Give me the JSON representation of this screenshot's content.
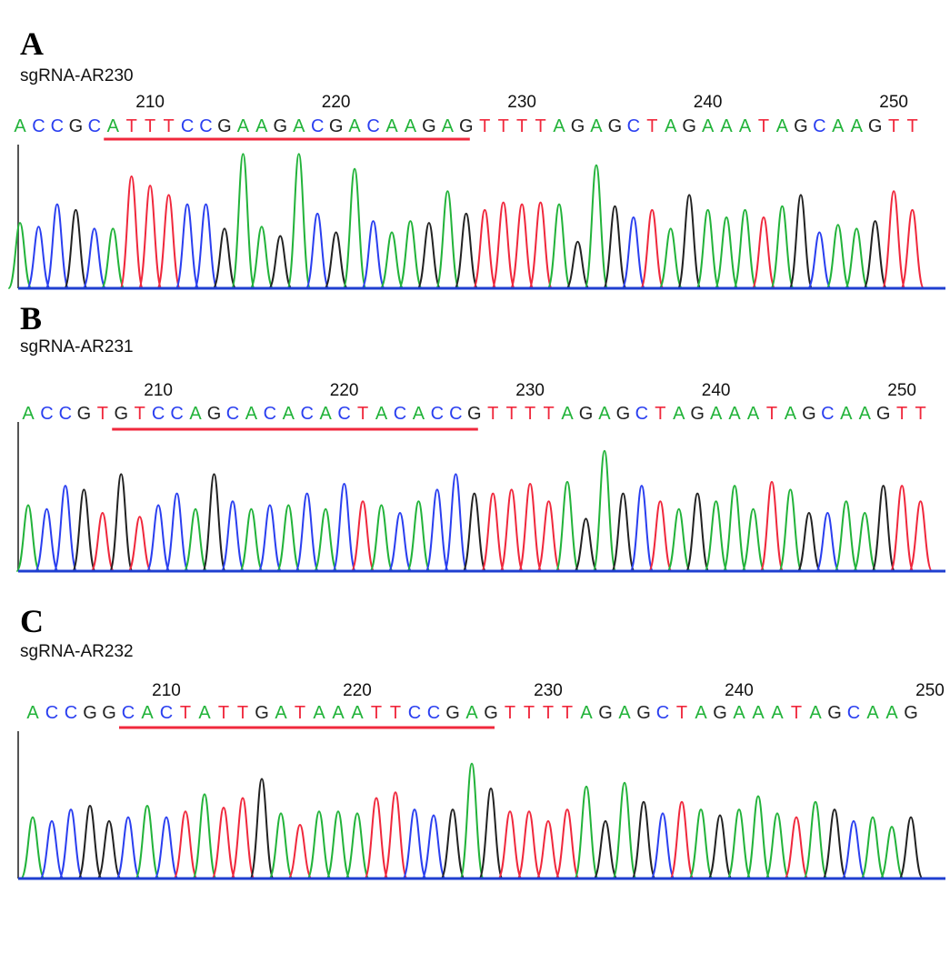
{
  "colors": {
    "A": "#22b33a",
    "C": "#2a3ff0",
    "G": "#222222",
    "T": "#f0283c",
    "underline": "#f0283c",
    "baseline": "#1f3fd0",
    "axis": "#555555"
  },
  "panels": [
    {
      "letter": "A",
      "label": "sgRNA-AR230",
      "positions": [
        "210",
        "220",
        "230",
        "240",
        "250"
      ],
      "sequence": "ACCGCATTTCCGAAGACGACAAGAGTTTTAGAGCTAGAAATAGCAAGTT",
      "underline_bases": [
        5,
        24
      ]
    },
    {
      "letter": "B",
      "label": "sgRNA-AR231",
      "positions": [
        "210",
        "220",
        "230",
        "240",
        "250"
      ],
      "sequence": "ACCGTGTCCAGCACACACTACACCGTTTTAGAGCTAGAAATAGCAAGTT",
      "underline_bases": [
        5,
        24
      ]
    },
    {
      "letter": "C",
      "label": "sgRNA-AR232",
      "positions": [
        "210",
        "220",
        "230",
        "240",
        "250"
      ],
      "sequence": "ACCGGCACTATTGATAAATTCCGAGTTTTAGAGCTAGAAATAGCAAG",
      "underline_bases": [
        5,
        24
      ]
    }
  ]
}
